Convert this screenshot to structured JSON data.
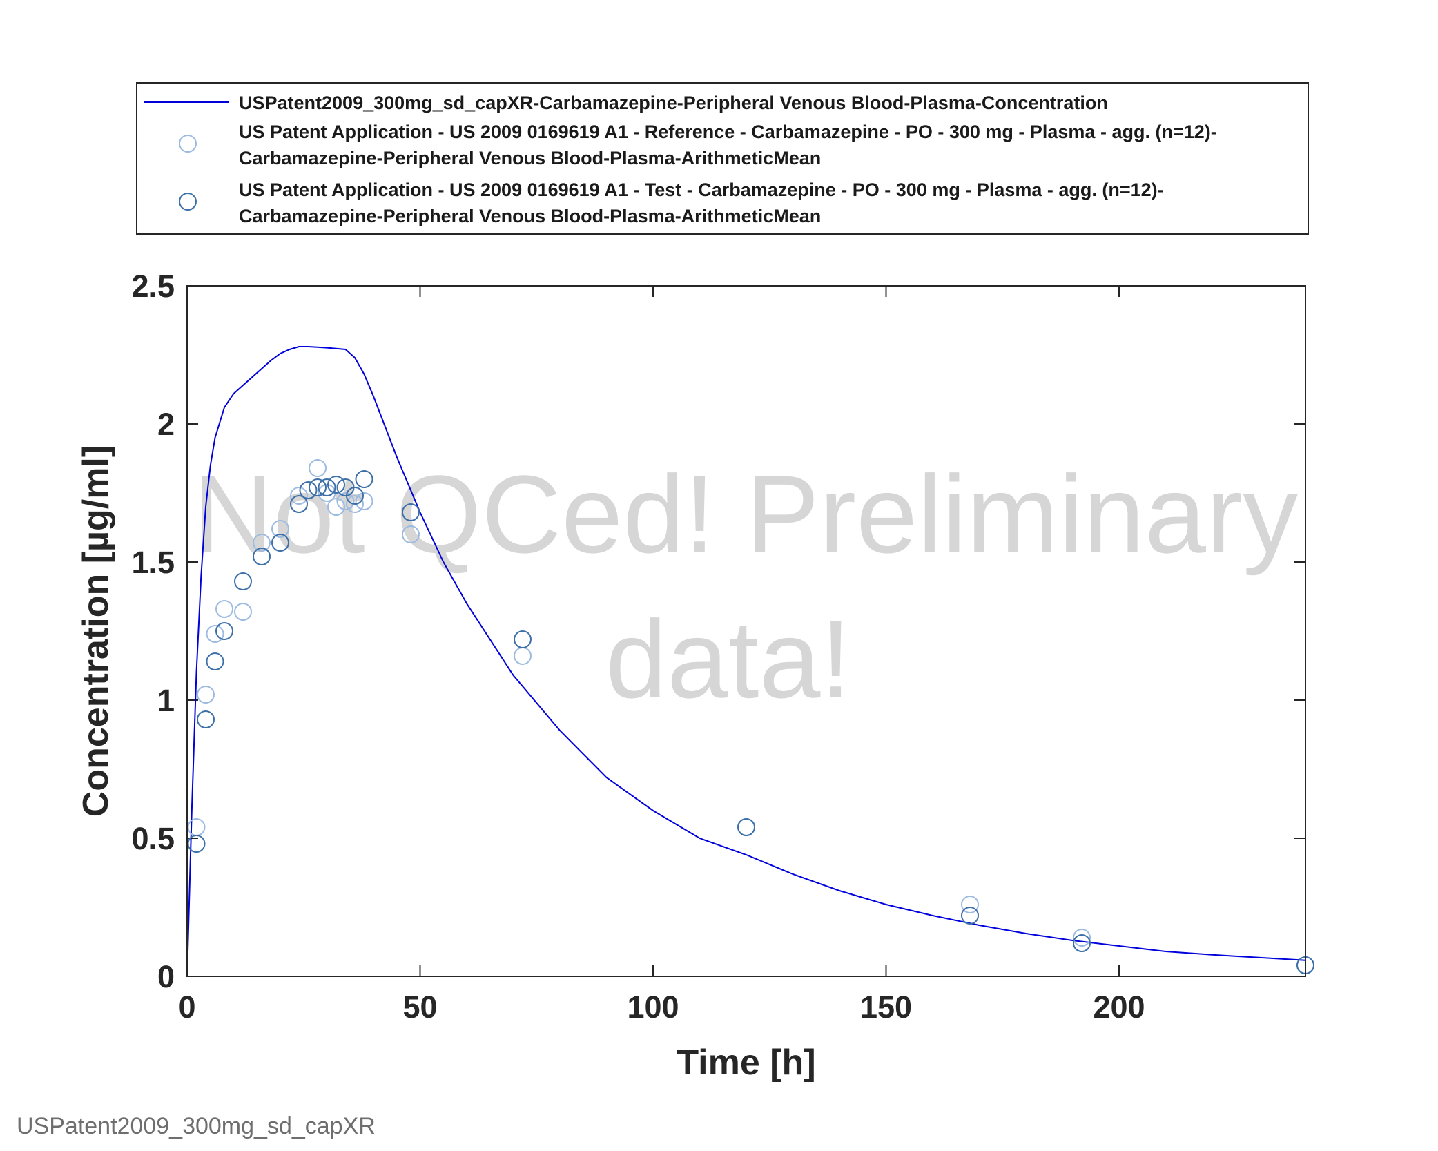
{
  "chart_data": {
    "type": "scatter",
    "xlabel": "Time [h]",
    "ylabel": "Concentration [µg/ml]",
    "xlim": [
      0,
      240
    ],
    "ylim": [
      0,
      2.5
    ],
    "xticks": [
      0,
      50,
      100,
      150,
      200
    ],
    "yticks": [
      0,
      0.5,
      1,
      1.5,
      2,
      2.5
    ],
    "xtick_labels": [
      "0",
      "50",
      "100",
      "150",
      "200"
    ],
    "ytick_labels": [
      "0",
      "0.5",
      "1",
      "1.5",
      "2",
      "2.5"
    ],
    "grid": false,
    "legend_position": "top, outside the axes",
    "watermark_lines": [
      "Not QCed! Preliminary",
      "data!"
    ],
    "footer": "USPatent2009_300mg_sd_capXR",
    "series": [
      {
        "name": "USPatent2009_300mg_sd_capXR-Carbamazepine-Peripheral Venous Blood-Plasma-Concentration",
        "legend_lines": [
          "USPatent2009_300mg_sd_capXR-Carbamazepine-Peripheral Venous Blood-Plasma-Concentration"
        ],
        "kind": "line",
        "color": "#0000dd",
        "x": [
          0,
          0.5,
          1,
          2,
          3,
          4,
          5,
          6,
          8,
          10,
          12,
          14,
          16,
          18,
          20,
          22,
          24,
          26,
          28,
          30,
          32,
          34,
          36,
          38,
          40,
          45,
          50,
          55,
          60,
          70,
          80,
          90,
          100,
          110,
          120,
          130,
          140,
          150,
          160,
          170,
          180,
          190,
          200,
          210,
          220,
          230,
          240
        ],
        "y": [
          0,
          0.3,
          0.6,
          1.1,
          1.45,
          1.7,
          1.85,
          1.95,
          2.06,
          2.11,
          2.14,
          2.17,
          2.2,
          2.23,
          2.255,
          2.27,
          2.28,
          2.28,
          2.278,
          2.276,
          2.273,
          2.27,
          2.24,
          2.18,
          2.1,
          1.88,
          1.68,
          1.5,
          1.35,
          1.09,
          0.89,
          0.72,
          0.6,
          0.5,
          0.44,
          0.37,
          0.31,
          0.26,
          0.22,
          0.185,
          0.155,
          0.13,
          0.11,
          0.09,
          0.078,
          0.068,
          0.058
        ]
      },
      {
        "name": "US Patent Application - US 2009 0169619 A1 - Reference - Carbamazepine - PO - 300 mg - Plasma - agg. (n=12)-Carbamazepine-Peripheral Venous Blood-Plasma-ArithmeticMean",
        "legend_lines": [
          "US Patent Application - US 2009 0169619 A1 - Reference - Carbamazepine - PO - 300 mg - Plasma - agg. (n=12)-",
          "Carbamazepine-Peripheral Venous Blood-Plasma-ArithmeticMean"
        ],
        "kind": "marker",
        "color": "#9dbbe0",
        "x": [
          2,
          4,
          6,
          8,
          12,
          16,
          20,
          24,
          28,
          30,
          32,
          34,
          36,
          38,
          48,
          72,
          120,
          168,
          192,
          240
        ],
        "y": [
          0.54,
          1.02,
          1.24,
          1.33,
          1.32,
          1.57,
          1.62,
          1.74,
          1.84,
          1.75,
          1.7,
          1.72,
          1.71,
          1.72,
          1.6,
          1.16,
          0.54,
          0.26,
          0.14,
          0.04
        ]
      },
      {
        "name": "US Patent Application - US 2009 0169619 A1 - Test - Carbamazepine - PO - 300 mg - Plasma - agg. (n=12)-Carbamazepine-Peripheral Venous Blood-Plasma-ArithmeticMean",
        "legend_lines": [
          "US Patent Application - US 2009 0169619 A1 - Test - Carbamazepine - PO - 300 mg - Plasma - agg. (n=12)-",
          "Carbamazepine-Peripheral Venous Blood-Plasma-ArithmeticMean"
        ],
        "kind": "marker",
        "color": "#3d6fa8",
        "x": [
          2,
          4,
          6,
          8,
          12,
          16,
          20,
          24,
          26,
          28,
          30,
          32,
          34,
          36,
          38,
          48,
          72,
          120,
          168,
          192,
          240
        ],
        "y": [
          0.48,
          0.93,
          1.14,
          1.25,
          1.43,
          1.52,
          1.57,
          1.71,
          1.76,
          1.77,
          1.77,
          1.78,
          1.77,
          1.74,
          1.8,
          1.68,
          1.22,
          0.54,
          0.22,
          0.12,
          0.04
        ]
      }
    ]
  }
}
